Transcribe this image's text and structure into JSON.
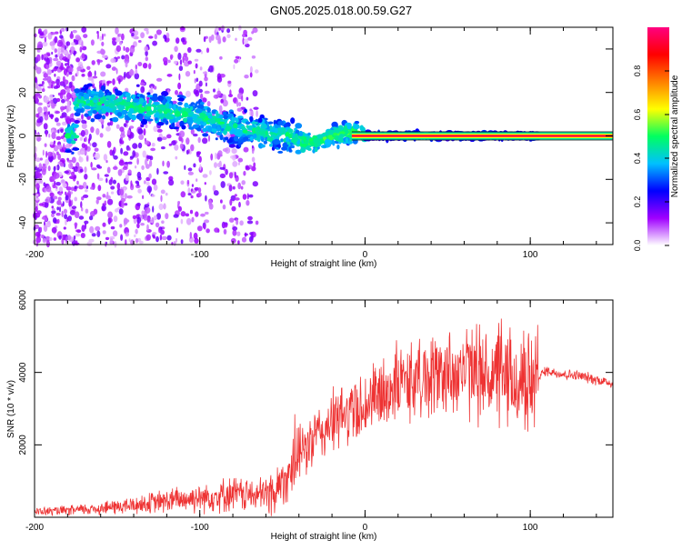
{
  "title": "GN05.2025.018.00.59.G27",
  "chart_data": [
    {
      "type": "heatmap",
      "xlabel": "Height of straight line (km)",
      "ylabel": "Frequency (Hz)",
      "xlim": [
        -200,
        150
      ],
      "ylim": [
        -50,
        50
      ],
      "xticks": [
        {
          "value": -200,
          "label": "-200"
        },
        {
          "value": -100,
          "label": "-100"
        },
        {
          "value": 0,
          "label": "0"
        },
        {
          "value": 100,
          "label": "100"
        }
      ],
      "yticks": [
        {
          "value": 40,
          "label": "40"
        },
        {
          "value": 20,
          "label": "20"
        },
        {
          "value": 0,
          "label": "0"
        },
        {
          "value": -20,
          "label": "-20"
        },
        {
          "value": -40,
          "label": "-40"
        }
      ],
      "ridge": [
        {
          "x": -175,
          "f": 16
        },
        {
          "x": -150,
          "f": 14
        },
        {
          "x": -125,
          "f": 12
        },
        {
          "x": -100,
          "f": 9
        },
        {
          "x": -80,
          "f": 4
        },
        {
          "x": -60,
          "f": 1
        },
        {
          "x": -45,
          "f": 0
        },
        {
          "x": -35,
          "f": -4
        },
        {
          "x": -20,
          "f": 0
        },
        {
          "x": -5,
          "f": 2
        },
        {
          "x": 0,
          "f": 0
        },
        {
          "x": 100,
          "f": 0
        },
        {
          "x": 150,
          "f": 0
        }
      ],
      "colorbar": {
        "label": "Normalized spectral amplitude",
        "range": [
          0,
          1
        ],
        "ticks": [
          {
            "value": 0.0,
            "label": "0.0"
          },
          {
            "value": 0.2,
            "label": "0.2"
          },
          {
            "value": 0.4,
            "label": "0.4"
          },
          {
            "value": 0.6,
            "label": "0.6"
          },
          {
            "value": 0.8,
            "label": "0.8"
          }
        ],
        "colors": [
          "#ffffff",
          "#a000ff",
          "#0000ff",
          "#00c0ff",
          "#00ff60",
          "#ffff00",
          "#ff8000",
          "#ff0000",
          "#ff0080"
        ]
      }
    },
    {
      "type": "line",
      "xlabel": "Height of straight line (km)",
      "ylabel": "SNR (10 * v/v)",
      "xlim": [
        -200,
        150
      ],
      "ylim": [
        0,
        6000
      ],
      "xticks": [
        {
          "value": -200,
          "label": "-200"
        },
        {
          "value": -100,
          "label": "-100"
        },
        {
          "value": 0,
          "label": "0"
        },
        {
          "value": 100,
          "label": "100"
        }
      ],
      "yticks": [
        {
          "value": 6000,
          "label": "6000"
        },
        {
          "value": 4000,
          "label": "4000"
        },
        {
          "value": 2000,
          "label": "2000"
        }
      ],
      "color": "#ee3333",
      "series": [
        {
          "name": "SNR",
          "x": [
            -200,
            -180,
            -160,
            -140,
            -120,
            -100,
            -80,
            -65,
            -55,
            -45,
            -40,
            -30,
            -20,
            -10,
            0,
            10,
            20,
            30,
            40,
            50,
            60,
            70,
            80,
            90,
            100,
            105,
            110,
            120,
            130,
            140,
            150
          ],
          "y": [
            150,
            180,
            250,
            330,
            450,
            550,
            650,
            600,
            700,
            1300,
            1700,
            2200,
            2600,
            2900,
            3100,
            3400,
            3700,
            3800,
            3900,
            4000,
            4050,
            3950,
            3850,
            3700,
            3650,
            3900,
            4050,
            3950,
            3900,
            3800,
            3700
          ]
        }
      ]
    }
  ]
}
